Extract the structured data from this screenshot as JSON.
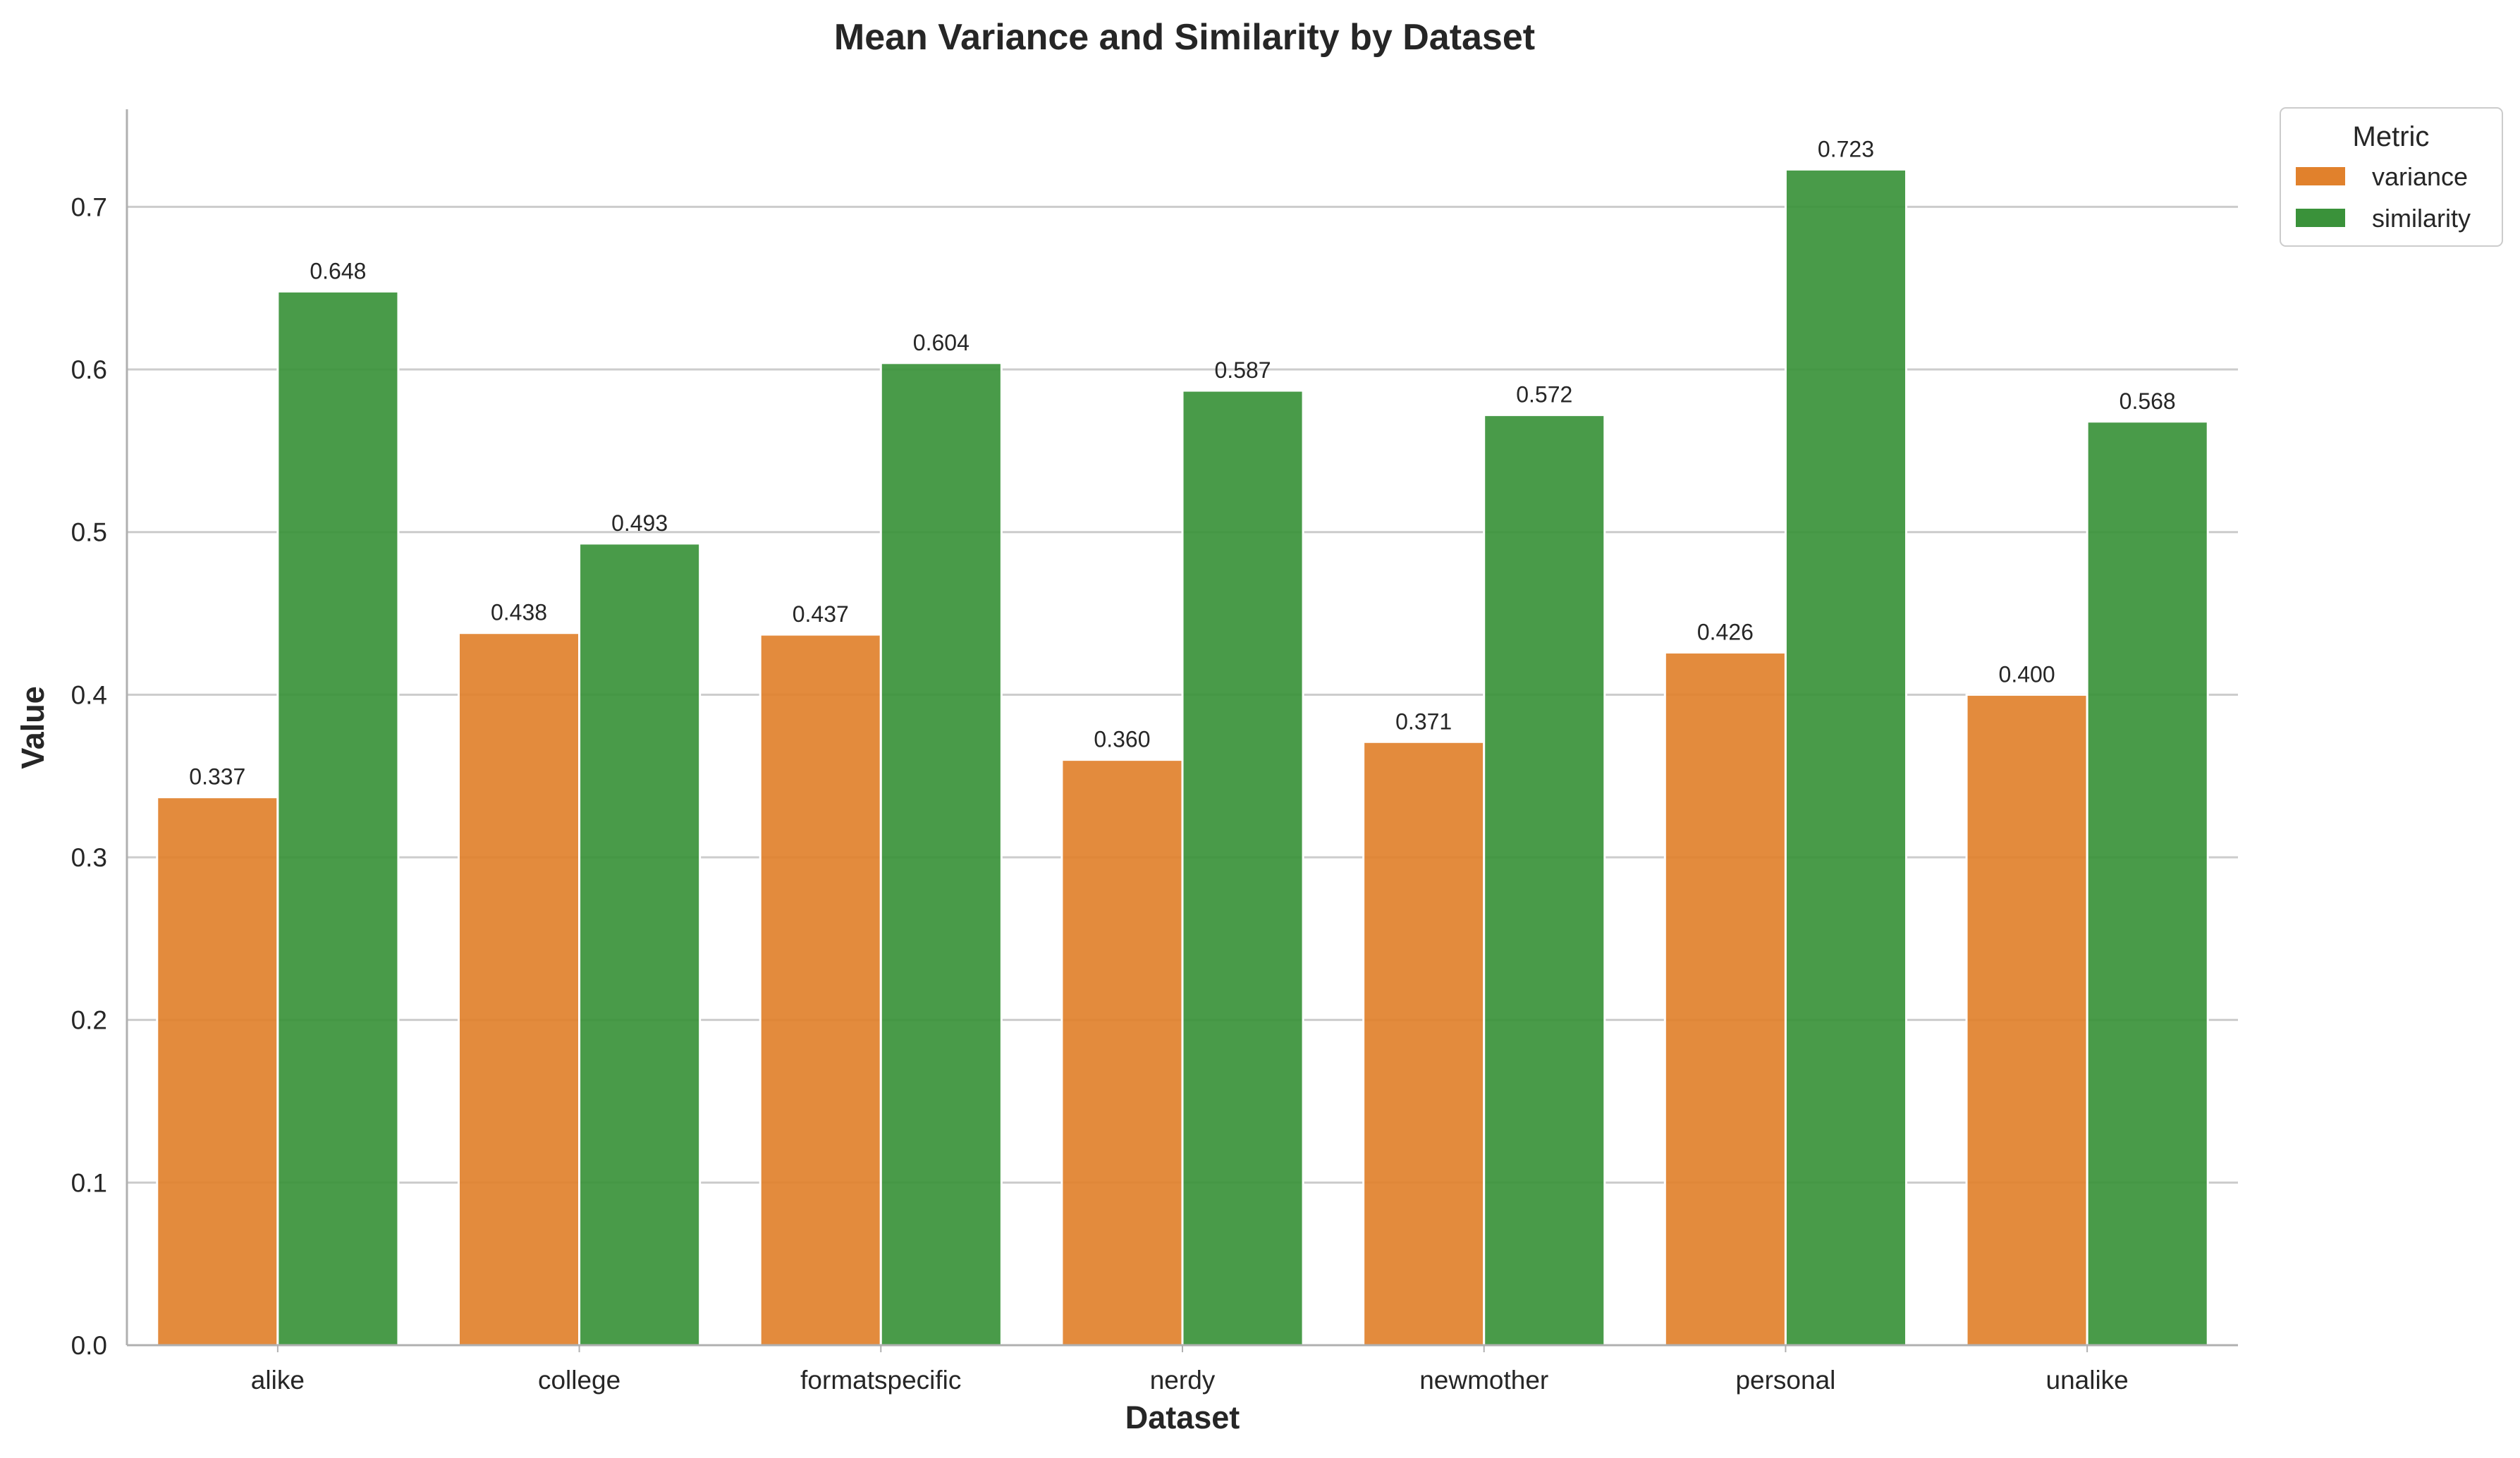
{
  "chart_data": {
    "type": "bar",
    "title": "Mean Variance and Similarity by Dataset",
    "xlabel": "Dataset",
    "ylabel": "Value",
    "ylim": [
      0,
      0.76
    ],
    "yticks": [
      "0.0",
      "0.1",
      "0.2",
      "0.3",
      "0.4",
      "0.5",
      "0.6",
      "0.7"
    ],
    "ytick_values": [
      0,
      0.1,
      0.2,
      0.3,
      0.4,
      0.5,
      0.6,
      0.7
    ],
    "grid": "horizontal",
    "legend": {
      "title": "Metric",
      "placement": "outside-top-right"
    },
    "categories": [
      "alike",
      "college",
      "formatspecific",
      "nerdy",
      "newmother",
      "personal",
      "unalike"
    ],
    "series": [
      {
        "name": "variance",
        "color": "#E1812C",
        "values": [
          0.337,
          0.438,
          0.437,
          0.36,
          0.371,
          0.426,
          0.4
        ],
        "labels": [
          "0.337",
          "0.438",
          "0.437",
          "0.360",
          "0.371",
          "0.426",
          "0.400"
        ]
      },
      {
        "name": "similarity",
        "color": "#3A923A",
        "values": [
          0.648,
          0.493,
          0.604,
          0.587,
          0.572,
          0.723,
          0.568
        ],
        "labels": [
          "0.648",
          "0.493",
          "0.604",
          "0.587",
          "0.572",
          "0.723",
          "0.568"
        ]
      }
    ]
  }
}
